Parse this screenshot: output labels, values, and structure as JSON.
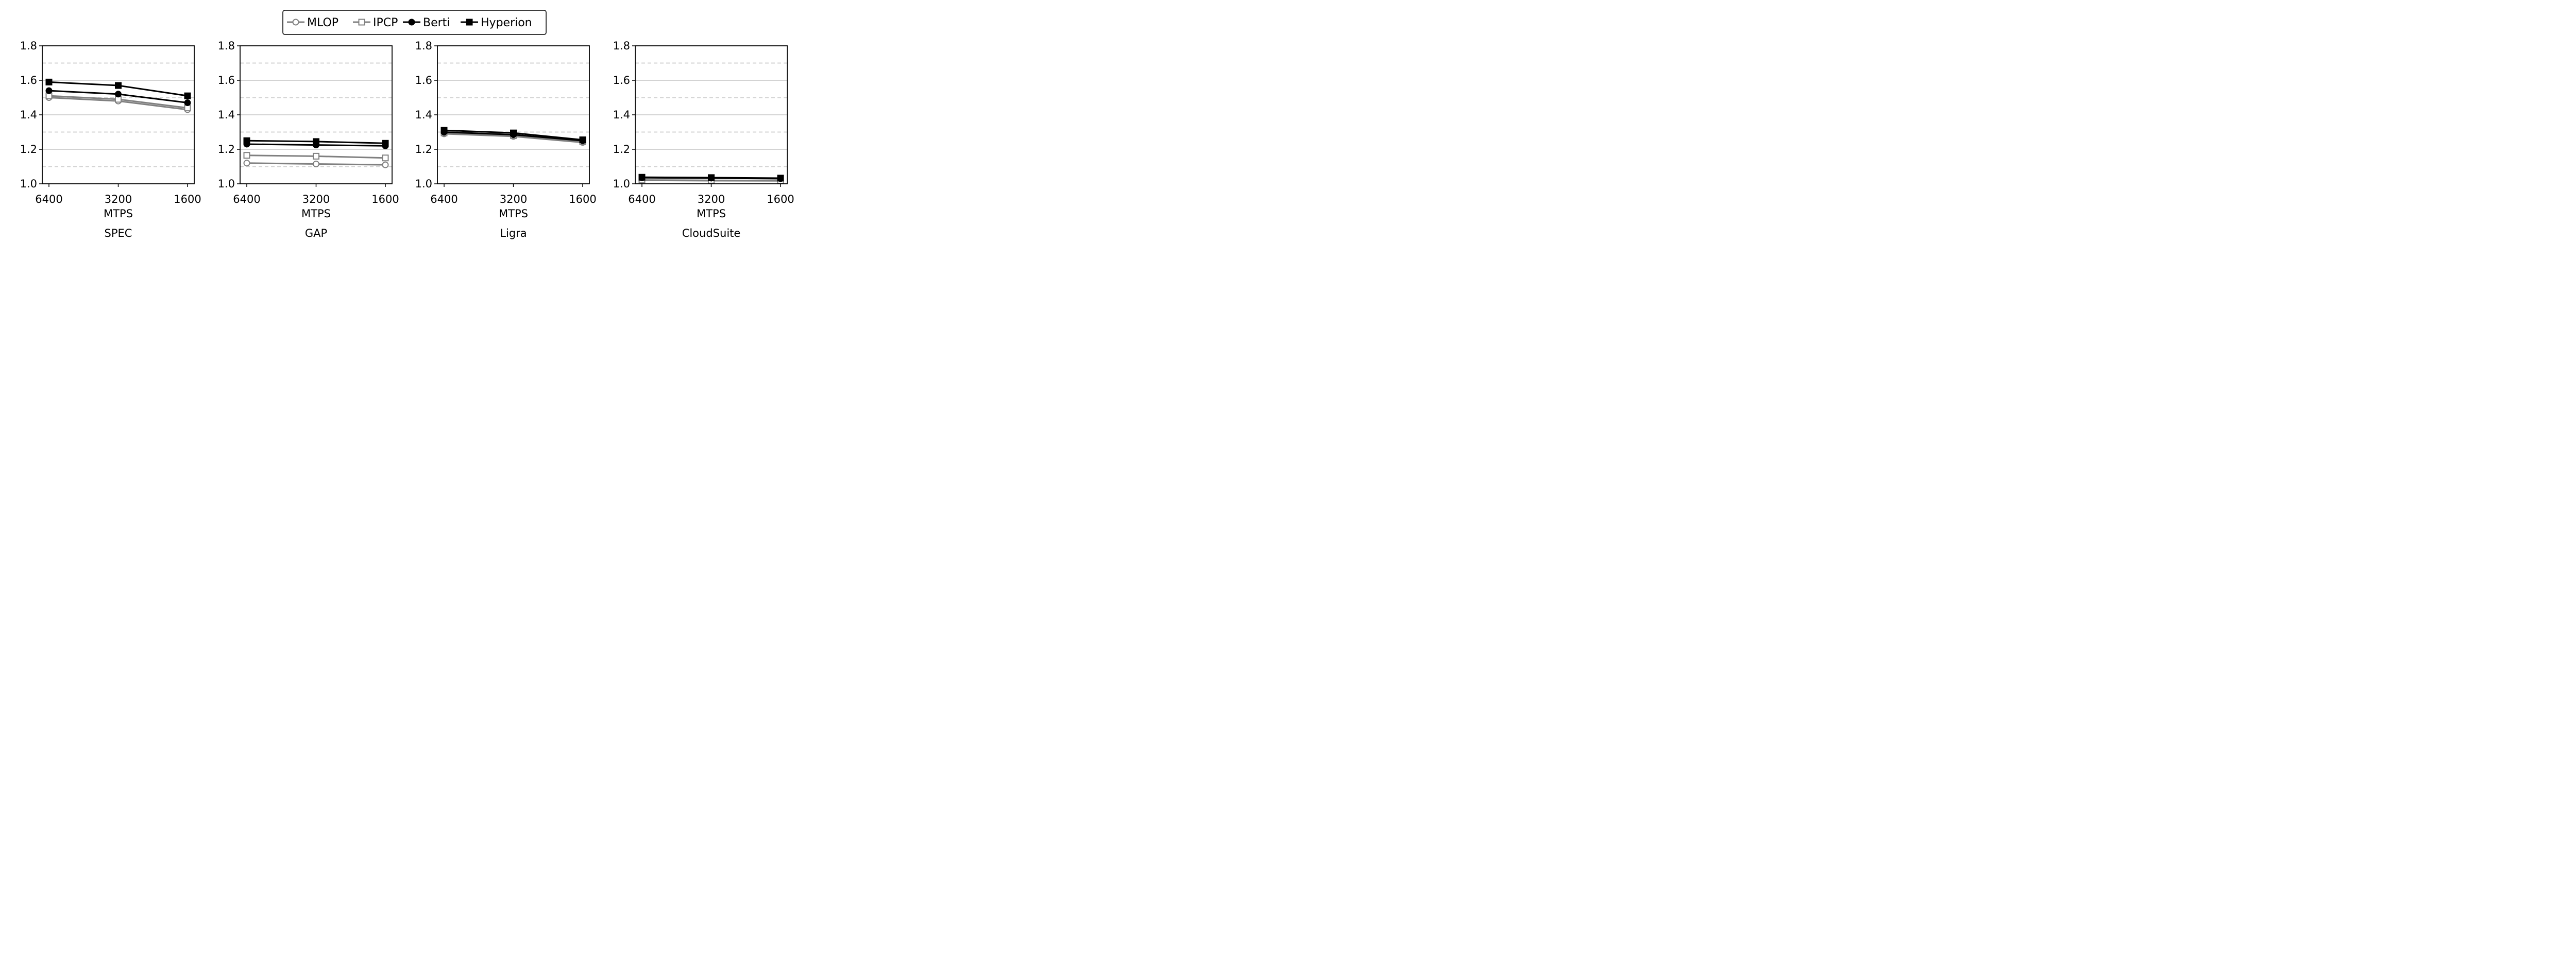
{
  "legend": {
    "placement": "top-center",
    "entries": [
      {
        "name": "MLOP",
        "color": "#808080",
        "marker": "circle-open"
      },
      {
        "name": "IPCP",
        "color": "#808080",
        "marker": "square-open"
      },
      {
        "name": "Berti",
        "color": "#000000",
        "marker": "circle-filled"
      },
      {
        "name": "Hyperion",
        "color": "#000000",
        "marker": "square-filled"
      }
    ]
  },
  "chart_data": [
    {
      "type": "line",
      "title": "SPEC",
      "xlabel": "MTPS",
      "categories": [
        "6400",
        "3200",
        "1600"
      ],
      "ylim": [
        1.0,
        1.8
      ],
      "yticks": [
        "1.0",
        "1.2",
        "1.4",
        "1.6",
        "1.8"
      ],
      "grid": "horizontal, solid at 0.2 steps, dashed at odd 0.1 steps",
      "series": [
        {
          "name": "MLOP",
          "values": [
            1.5,
            1.48,
            1.43
          ]
        },
        {
          "name": "IPCP",
          "values": [
            1.51,
            1.49,
            1.44
          ]
        },
        {
          "name": "Berti",
          "values": [
            1.54,
            1.52,
            1.47
          ]
        },
        {
          "name": "Hyperion",
          "values": [
            1.59,
            1.57,
            1.51
          ]
        }
      ]
    },
    {
      "type": "line",
      "title": "GAP",
      "xlabel": "MTPS",
      "categories": [
        "6400",
        "3200",
        "1600"
      ],
      "ylim": [
        1.0,
        1.8
      ],
      "yticks": [
        "1.0",
        "1.2",
        "1.4",
        "1.6",
        "1.8"
      ],
      "grid": "horizontal, solid at 0.2 steps, dashed at odd 0.1 steps",
      "series": [
        {
          "name": "MLOP",
          "values": [
            1.12,
            1.115,
            1.11
          ]
        },
        {
          "name": "IPCP",
          "values": [
            1.165,
            1.16,
            1.15
          ]
        },
        {
          "name": "Berti",
          "values": [
            1.23,
            1.225,
            1.22
          ]
        },
        {
          "name": "Hyperion",
          "values": [
            1.25,
            1.245,
            1.235
          ]
        }
      ]
    },
    {
      "type": "line",
      "title": "Ligra",
      "xlabel": "MTPS",
      "categories": [
        "6400",
        "3200",
        "1600"
      ],
      "ylim": [
        1.0,
        1.8
      ],
      "yticks": [
        "1.0",
        "1.2",
        "1.4",
        "1.6",
        "1.8"
      ],
      "grid": "horizontal, solid at 0.2 steps, dashed at odd 0.1 steps",
      "series": [
        {
          "name": "MLOP",
          "values": [
            1.29,
            1.275,
            1.24
          ]
        },
        {
          "name": "IPCP",
          "values": [
            1.295,
            1.28,
            1.245
          ]
        },
        {
          "name": "Berti",
          "values": [
            1.3,
            1.285,
            1.25
          ]
        },
        {
          "name": "Hyperion",
          "values": [
            1.31,
            1.295,
            1.255
          ]
        }
      ]
    },
    {
      "type": "line",
      "title": "CloudSuite",
      "xlabel": "MTPS",
      "categories": [
        "6400",
        "3200",
        "1600"
      ],
      "ylim": [
        1.0,
        1.8
      ],
      "yticks": [
        "1.0",
        "1.2",
        "1.4",
        "1.6",
        "1.8"
      ],
      "grid": "horizontal, solid at 0.2 steps, dashed at odd 0.1 steps",
      "series": [
        {
          "name": "MLOP",
          "values": [
            1.02,
            1.018,
            1.017
          ]
        },
        {
          "name": "IPCP",
          "values": [
            1.022,
            1.02,
            1.019
          ]
        },
        {
          "name": "Berti",
          "values": [
            1.035,
            1.033,
            1.03
          ]
        },
        {
          "name": "Hyperion",
          "values": [
            1.038,
            1.036,
            1.033
          ]
        }
      ]
    }
  ]
}
